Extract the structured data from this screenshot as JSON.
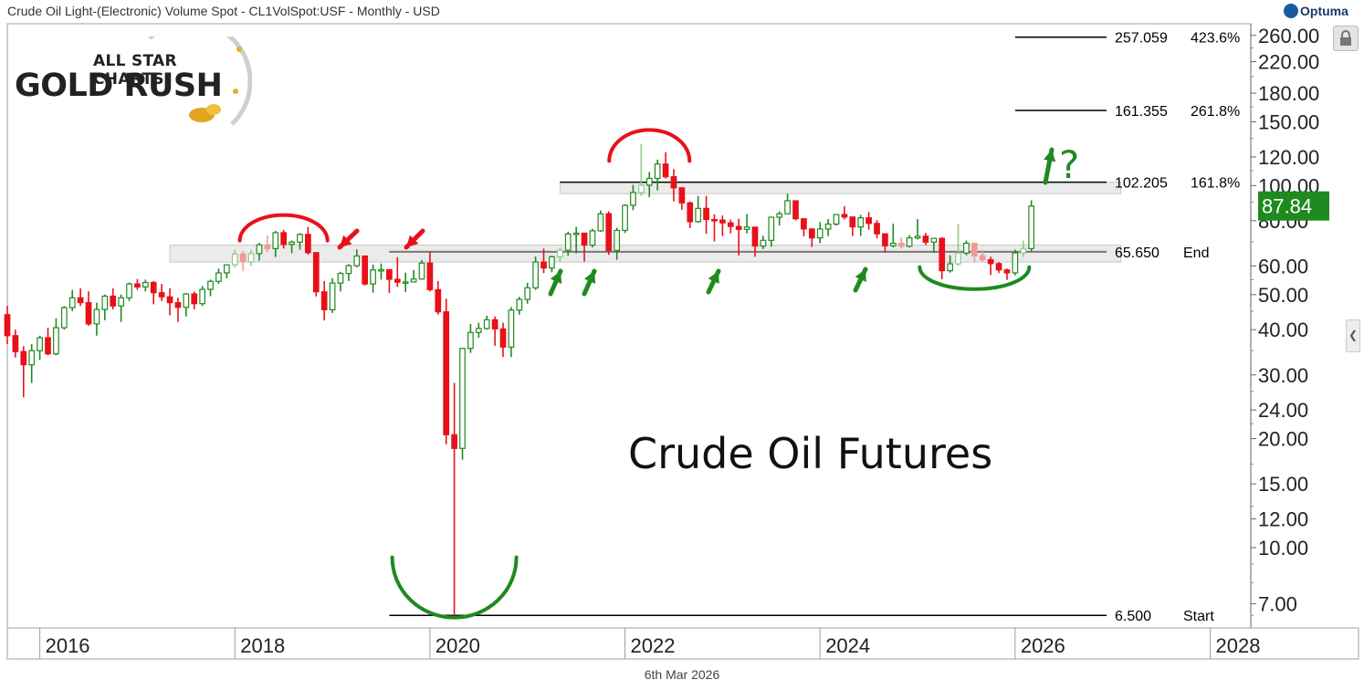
{
  "header": {
    "title": "Crude Oil Light-(Electronic) Volume Spot - CL1VolSpot:USF - Monthly - USD",
    "brand": "Optuma"
  },
  "watermark": {
    "line1": "ALL STAR CHARTS",
    "line2": "GOLD RUSH"
  },
  "annotation": "Crude Oil Futures",
  "question_mark": "?",
  "footer": {
    "date": "6th Mar 2026"
  },
  "colors": {
    "up": "#1f8a1f",
    "down": "#e8111a",
    "up_faded": "#8fc98f",
    "down_faded": "#f29a9a",
    "arc_red": "#e8111a",
    "arc_green": "#1f8a1f"
  },
  "chart_data": {
    "type": "candlestick",
    "y_scale": "log",
    "ylim": [
      6.0,
      280.0
    ],
    "xlim": [
      "2015-09",
      "2028-06"
    ],
    "x_tick_labels": [
      "2016",
      "2018",
      "2020",
      "2022",
      "2024",
      "2026",
      "2028"
    ],
    "y_tick_labels": [
      "260.00",
      "220.00",
      "180.00",
      "150.00",
      "120.00",
      "100.00",
      "80.00",
      "60.00",
      "50.00",
      "40.00",
      "30.00",
      "24.00",
      "20.00",
      "15.00",
      "12.00",
      "10.00",
      "7.00"
    ],
    "y_tick_values": [
      260,
      220,
      180,
      150,
      120,
      100,
      80,
      60,
      50,
      40,
      30,
      24,
      20,
      15,
      12,
      10,
      7
    ],
    "last_price": {
      "value": 87.84,
      "label": "87.84"
    },
    "levels": [
      {
        "price": 257.059,
        "label": "257.059",
        "tag": "423.6%",
        "x_start": "2026-01"
      },
      {
        "price": 161.355,
        "label": "161.355",
        "tag": "261.8%",
        "x_start": "2026-01"
      },
      {
        "price": 102.205,
        "label": "102.205",
        "tag": "161.8%",
        "x_start": "2021-05"
      },
      {
        "price": 65.65,
        "label": "65.650",
        "tag": "End",
        "x_start": "2019-08"
      },
      {
        "price": 6.5,
        "label": "6.500",
        "tag": "Start",
        "x_start": "2019-08"
      }
    ],
    "zones": [
      {
        "from": "2017-05",
        "to": "2027-02",
        "low": 61.5,
        "high": 68.5
      },
      {
        "from": "2021-05",
        "to": "2027-02",
        "low": 95.0,
        "high": 102.2
      }
    ],
    "ohlc": [
      [
        "2015-09",
        44.0,
        46.5,
        36.5,
        38.5
      ],
      [
        "2015-10",
        38.5,
        40.0,
        33.5,
        34.8
      ],
      [
        "2015-11",
        34.8,
        36.0,
        26.0,
        32.0
      ],
      [
        "2015-12",
        32.0,
        36.5,
        28.5,
        35.0
      ],
      [
        "2016-01",
        35.0,
        38.5,
        33.0,
        38.0
      ],
      [
        "2016-02",
        38.0,
        40.5,
        34.0,
        34.3
      ],
      [
        "2016-03",
        34.3,
        43.0,
        34.0,
        40.5
      ],
      [
        "2016-04",
        40.5,
        46.5,
        40.0,
        46.0
      ],
      [
        "2016-05",
        46.0,
        51.5,
        45.0,
        49.0
      ],
      [
        "2016-06",
        49.0,
        52.0,
        46.5,
        47.5
      ],
      [
        "2016-07",
        47.5,
        51.0,
        41.0,
        41.5
      ],
      [
        "2016-08",
        41.5,
        47.5,
        38.5,
        45.5
      ],
      [
        "2016-09",
        45.5,
        50.0,
        42.5,
        49.5
      ],
      [
        "2016-10",
        49.5,
        52.0,
        45.5,
        46.5
      ],
      [
        "2016-11",
        46.5,
        50.0,
        42.0,
        49.0
      ],
      [
        "2016-12",
        49.0,
        54.0,
        48.0,
        53.5
      ],
      [
        "2017-01",
        53.5,
        55.2,
        51.5,
        52.5
      ],
      [
        "2017-02",
        52.5,
        55.0,
        51.0,
        54.0
      ],
      [
        "2017-03",
        54.0,
        54.5,
        47.0,
        50.6
      ],
      [
        "2017-04",
        50.6,
        53.5,
        48.0,
        49.3
      ],
      [
        "2017-05",
        49.3,
        52.0,
        43.8,
        47.5
      ],
      [
        "2017-06",
        47.5,
        49.0,
        42.0,
        46.1
      ],
      [
        "2017-07",
        46.1,
        50.5,
        43.5,
        50.2
      ],
      [
        "2017-08",
        50.2,
        51.0,
        45.5,
        47.2
      ],
      [
        "2017-09",
        47.2,
        52.8,
        46.5,
        51.7
      ],
      [
        "2017-10",
        51.7,
        55.0,
        49.5,
        54.4
      ],
      [
        "2017-11",
        54.4,
        59.0,
        53.5,
        57.4
      ],
      [
        "2017-12",
        57.4,
        60.5,
        55.5,
        60.4
      ],
      [
        "2018-01",
        60.4,
        66.5,
        59.5,
        64.7
      ],
      [
        "2018-02",
        64.7,
        66.0,
        58.0,
        61.6
      ],
      [
        "2018-03",
        61.6,
        66.5,
        60.0,
        64.9
      ],
      [
        "2018-04",
        64.9,
        69.5,
        62.0,
        68.6
      ],
      [
        "2018-05",
        68.6,
        72.8,
        65.5,
        67.0
      ],
      [
        "2018-06",
        67.0,
        75.0,
        63.5,
        74.1
      ],
      [
        "2018-07",
        74.1,
        75.5,
        67.0,
        68.8
      ],
      [
        "2018-08",
        68.8,
        70.5,
        65.0,
        69.8
      ],
      [
        "2018-09",
        69.8,
        74.0,
        66.5,
        73.3
      ],
      [
        "2018-10",
        73.3,
        76.9,
        64.5,
        65.3
      ],
      [
        "2018-11",
        65.3,
        64.5,
        49.4,
        50.9
      ],
      [
        "2018-12",
        50.9,
        54.5,
        42.4,
        45.4
      ],
      [
        "2019-01",
        45.4,
        55.5,
        44.5,
        53.8
      ],
      [
        "2019-02",
        53.8,
        57.8,
        51.0,
        57.2
      ],
      [
        "2019-03",
        57.2,
        60.7,
        54.5,
        60.1
      ],
      [
        "2019-04",
        60.1,
        66.6,
        59.5,
        63.9
      ],
      [
        "2019-05",
        63.9,
        63.5,
        53.0,
        53.5
      ],
      [
        "2019-06",
        53.5,
        60.5,
        50.6,
        58.5
      ],
      [
        "2019-07",
        58.5,
        60.9,
        55.0,
        58.6
      ],
      [
        "2019-08",
        58.6,
        57.5,
        50.5,
        55.1
      ],
      [
        "2019-09",
        55.1,
        63.4,
        52.5,
        54.1
      ],
      [
        "2019-10",
        54.1,
        57.5,
        50.8,
        54.2
      ],
      [
        "2019-11",
        54.2,
        58.5,
        54.0,
        55.2
      ],
      [
        "2019-12",
        55.2,
        62.3,
        55.0,
        61.1
      ],
      [
        "2020-01",
        61.1,
        65.7,
        51.0,
        51.6
      ],
      [
        "2020-02",
        51.6,
        54.5,
        44.0,
        44.8
      ],
      [
        "2020-03",
        44.8,
        48.7,
        19.3,
        20.5
      ],
      [
        "2020-04",
        20.5,
        28.5,
        6.5,
        18.8
      ],
      [
        "2020-05",
        18.8,
        35.0,
        17.5,
        35.5
      ],
      [
        "2020-06",
        35.5,
        41.5,
        34.5,
        39.3
      ],
      [
        "2020-07",
        39.3,
        41.8,
        38.0,
        40.3
      ],
      [
        "2020-08",
        40.3,
        43.7,
        40.0,
        42.6
      ],
      [
        "2020-09",
        42.6,
        43.5,
        36.1,
        40.2
      ],
      [
        "2020-10",
        40.2,
        41.8,
        33.6,
        35.8
      ],
      [
        "2020-11",
        35.8,
        46.2,
        33.6,
        45.3
      ],
      [
        "2020-12",
        45.3,
        49.3,
        44.0,
        48.5
      ],
      [
        "2021-01",
        48.5,
        53.9,
        47.2,
        52.2
      ],
      [
        "2021-02",
        52.2,
        63.8,
        51.5,
        61.5
      ],
      [
        "2021-03",
        61.5,
        67.0,
        57.3,
        59.2
      ],
      [
        "2021-04",
        59.2,
        64.0,
        57.6,
        63.6
      ],
      [
        "2021-05",
        63.6,
        67.5,
        61.6,
        66.3
      ],
      [
        "2021-06",
        66.3,
        74.6,
        64.0,
        73.5
      ],
      [
        "2021-07",
        73.5,
        76.9,
        65.0,
        73.9
      ],
      [
        "2021-08",
        73.9,
        74.0,
        61.7,
        68.5
      ],
      [
        "2021-09",
        68.5,
        76.0,
        67.5,
        75.0
      ],
      [
        "2021-10",
        75.0,
        85.4,
        74.5,
        83.6
      ],
      [
        "2021-11",
        83.6,
        84.9,
        64.4,
        66.2
      ],
      [
        "2021-12",
        66.2,
        76.5,
        62.4,
        75.2
      ],
      [
        "2022-01",
        75.2,
        88.8,
        74.0,
        88.2
      ],
      [
        "2022-02",
        88.2,
        100.5,
        85.5,
        95.7
      ],
      [
        "2022-03",
        95.7,
        130.5,
        93.5,
        100.3
      ],
      [
        "2022-04",
        100.3,
        109.0,
        92.9,
        104.7
      ],
      [
        "2022-05",
        104.7,
        118.0,
        97.0,
        114.7
      ],
      [
        "2022-06",
        114.7,
        123.7,
        104.5,
        105.8
      ],
      [
        "2022-07",
        105.8,
        111.0,
        90.5,
        98.6
      ],
      [
        "2022-08",
        98.6,
        97.6,
        85.7,
        89.6
      ],
      [
        "2022-09",
        89.6,
        90.4,
        76.3,
        79.5
      ],
      [
        "2022-10",
        79.5,
        93.6,
        79.0,
        86.5
      ],
      [
        "2022-11",
        86.5,
        93.7,
        73.6,
        80.6
      ],
      [
        "2022-12",
        80.6,
        83.3,
        70.1,
        80.3
      ],
      [
        "2023-01",
        80.3,
        82.7,
        72.5,
        78.9
      ],
      [
        "2023-02",
        78.9,
        80.6,
        73.8,
        77.1
      ],
      [
        "2023-03",
        77.1,
        81.0,
        64.1,
        75.7
      ],
      [
        "2023-04",
        75.7,
        83.5,
        73.8,
        76.8
      ],
      [
        "2023-05",
        76.8,
        76.5,
        63.6,
        68.1
      ],
      [
        "2023-06",
        68.1,
        72.7,
        66.8,
        70.6
      ],
      [
        "2023-07",
        70.6,
        82.0,
        67.8,
        81.8
      ],
      [
        "2023-08",
        81.8,
        84.9,
        77.6,
        83.6
      ],
      [
        "2023-09",
        83.6,
        95.0,
        83.4,
        90.8
      ],
      [
        "2023-10",
        90.8,
        91.0,
        80.1,
        81.0
      ],
      [
        "2023-11",
        81.0,
        80.2,
        72.4,
        75.9
      ],
      [
        "2023-12",
        75.9,
        76.2,
        67.7,
        71.7
      ],
      [
        "2024-01",
        71.7,
        79.3,
        69.3,
        75.9
      ],
      [
        "2024-02",
        75.9,
        80.9,
        72.5,
        78.3
      ],
      [
        "2024-03",
        78.3,
        83.1,
        77.5,
        83.2
      ],
      [
        "2024-04",
        83.2,
        87.7,
        80.7,
        81.9
      ],
      [
        "2024-05",
        81.9,
        81.5,
        72.5,
        76.9
      ],
      [
        "2024-06",
        76.9,
        83.0,
        72.5,
        81.5
      ],
      [
        "2024-07",
        81.5,
        84.5,
        75.5,
        78.6
      ],
      [
        "2024-08",
        78.6,
        80.3,
        71.5,
        73.6
      ],
      [
        "2024-09",
        73.6,
        73.5,
        65.3,
        68.2
      ],
      [
        "2024-10",
        68.2,
        78.5,
        67.5,
        69.3
      ],
      [
        "2024-11",
        69.3,
        72.0,
        66.9,
        68.0
      ],
      [
        "2024-12",
        68.0,
        73.0,
        67.5,
        71.7
      ],
      [
        "2025-01",
        71.7,
        80.8,
        71.0,
        72.5
      ],
      [
        "2025-02",
        72.5,
        74.0,
        68.5,
        69.8
      ],
      [
        "2025-03",
        69.8,
        71.5,
        65.2,
        71.5
      ],
      [
        "2025-04",
        71.5,
        72.0,
        55.1,
        58.2
      ],
      [
        "2025-05",
        58.2,
        64.2,
        57.5,
        60.8
      ],
      [
        "2025-06",
        60.8,
        78.4,
        60.0,
        65.1
      ],
      [
        "2025-07",
        65.1,
        70.5,
        64.2,
        69.3
      ],
      [
        "2025-08",
        69.3,
        69.4,
        61.5,
        64.0
      ],
      [
        "2025-09",
        64.0,
        66.5,
        61.5,
        62.4
      ],
      [
        "2025-10",
        62.4,
        63.6,
        56.6,
        60.9
      ],
      [
        "2025-11",
        60.9,
        61.5,
        57.3,
        58.5
      ],
      [
        "2025-12",
        58.5,
        59.0,
        54.9,
        57.4
      ],
      [
        "2026-01",
        57.4,
        66.5,
        56.5,
        65.2
      ],
      [
        "2026-02",
        65.2,
        70.5,
        63.5,
        67.0
      ],
      [
        "2026-03",
        67.0,
        91.0,
        66.0,
        87.8
      ]
    ]
  }
}
